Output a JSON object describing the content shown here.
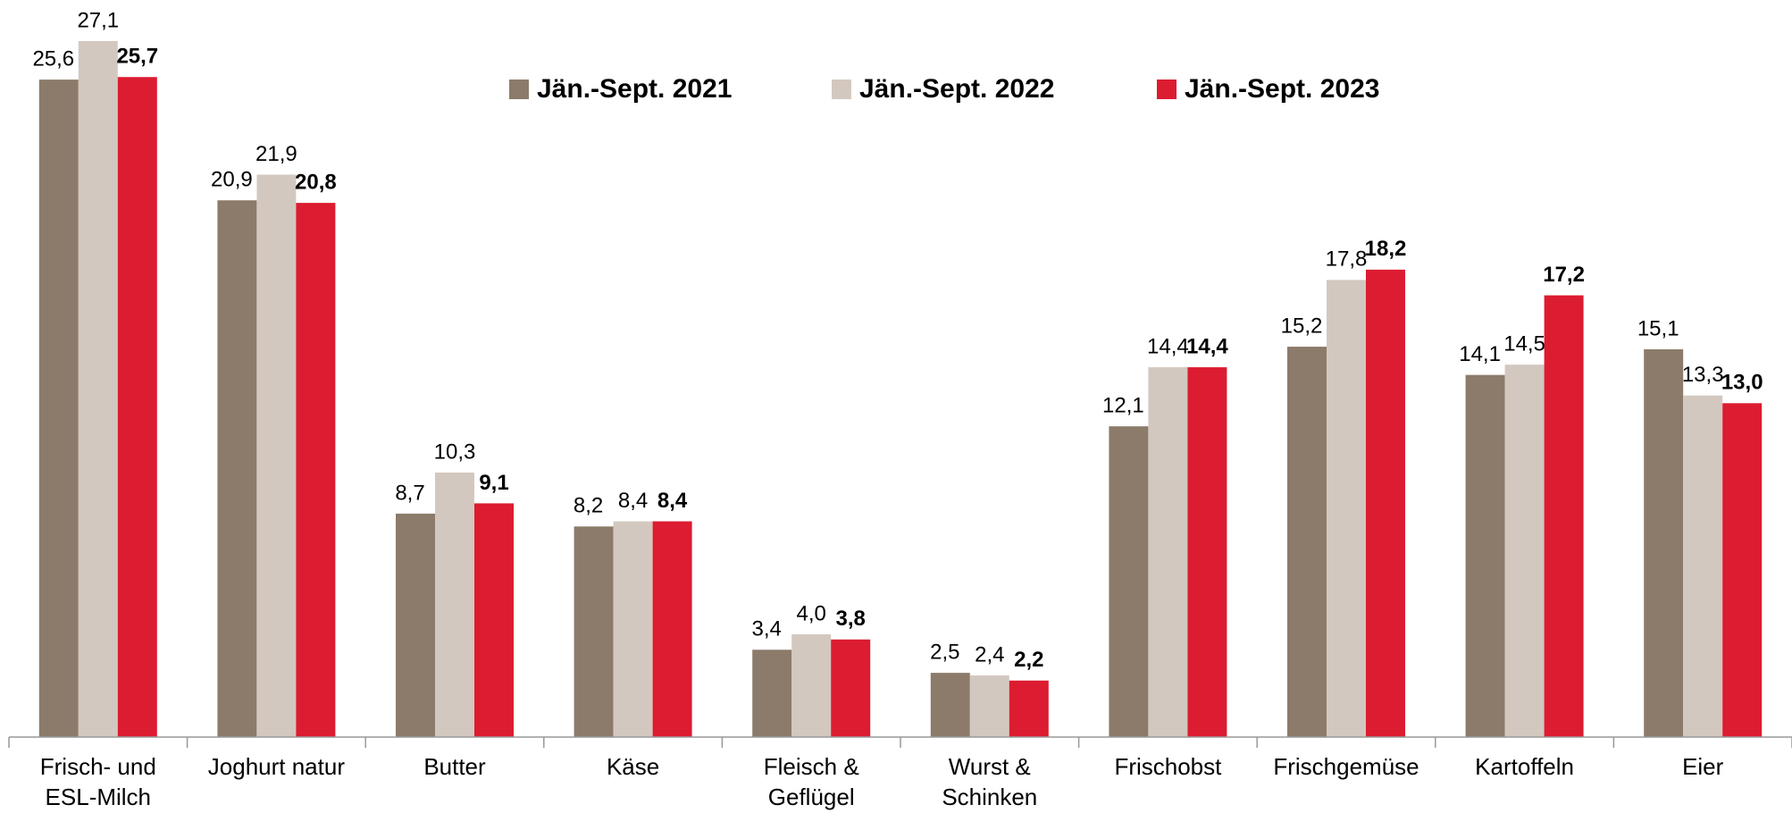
{
  "chart_data": {
    "type": "bar",
    "categories": [
      [
        "Frisch- und",
        "ESL-Milch"
      ],
      [
        "Joghurt natur"
      ],
      [
        "Butter"
      ],
      [
        "Käse"
      ],
      [
        "Fleisch &",
        "Geflügel"
      ],
      [
        "Wurst &",
        "Schinken"
      ],
      [
        "Frischobst"
      ],
      [
        "Frischgemüse"
      ],
      [
        "Kartoffeln"
      ],
      [
        "Eier"
      ]
    ],
    "series": [
      {
        "name": "Jän.-Sept. 2021",
        "color": "#8c7b6a",
        "bold": false,
        "values": [
          25.6,
          20.9,
          8.7,
          8.2,
          3.4,
          2.5,
          12.1,
          15.2,
          14.1,
          15.1
        ],
        "value_labels": [
          "25,6",
          "20,9",
          "8,7",
          "8,2",
          "3,4",
          "2,5",
          "12,1",
          "15,2",
          "14,1",
          "15,1"
        ]
      },
      {
        "name": "Jän.-Sept. 2022",
        "color": "#d3c8bf",
        "bold": false,
        "values": [
          27.1,
          21.9,
          10.3,
          8.4,
          4.0,
          2.4,
          14.4,
          17.8,
          14.5,
          13.3
        ],
        "value_labels": [
          "27,1",
          "21,9",
          "10,3",
          "8,4",
          "4,0",
          "2,4",
          "14,4",
          "17,8",
          "14,5",
          "13,3"
        ]
      },
      {
        "name": "Jän.-Sept. 2023",
        "color": "#dc1c30",
        "bold": true,
        "values": [
          25.7,
          20.8,
          9.1,
          8.4,
          3.8,
          2.2,
          14.4,
          18.2,
          17.2,
          13.0
        ],
        "value_labels": [
          "25,7",
          "20,8",
          "9,1",
          "8,4",
          "3,8",
          "2,2",
          "14,4",
          "18,2",
          "17,2",
          "13,0"
        ]
      }
    ],
    "ylim": [
      0,
      28.7
    ],
    "legend": "top"
  }
}
